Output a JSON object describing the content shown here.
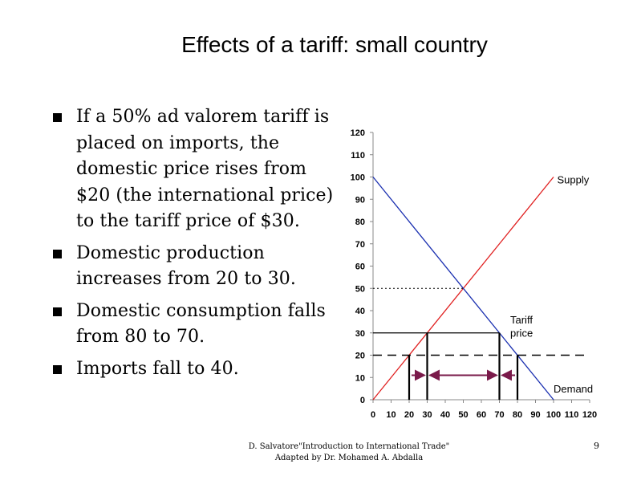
{
  "title": "Effects of a tariff: small country",
  "bullets": [
    "If a 50% ad valorem tariff is placed on imports, the domestic price rises from $20 (the international price) to the tariff price of $30.",
    "Domestic production increases from 20 to 30.",
    "Domestic consumption falls from 80 to 70.",
    "Imports fall to 40."
  ],
  "footer": {
    "line1": "D. Salvatore\"Introduction to International Trade\"",
    "line2": "Adapted by Dr. Mohamed A. Abdalla"
  },
  "page_number": "9",
  "chart_data": {
    "type": "line",
    "xlim": [
      0,
      120
    ],
    "ylim": [
      0,
      120
    ],
    "x_ticks": [
      0,
      10,
      20,
      30,
      40,
      50,
      60,
      70,
      80,
      90,
      100,
      110,
      120
    ],
    "y_ticks": [
      0,
      10,
      20,
      30,
      40,
      50,
      60,
      70,
      80,
      90,
      100,
      110,
      120
    ],
    "series": [
      {
        "name": "Supply",
        "color": "#e02020",
        "points": [
          [
            0,
            0
          ],
          [
            100,
            100
          ]
        ]
      },
      {
        "name": "Demand",
        "color": "#1a2fb0",
        "points": [
          [
            0,
            100
          ],
          [
            100,
            0
          ]
        ]
      }
    ],
    "equilibrium": {
      "quantity": 50,
      "price": 50
    },
    "world_price": 20,
    "tariff_price": 30,
    "annotations": {
      "supply": "Supply",
      "demand": "Demand",
      "tariff_line1": "Tariff",
      "tariff_line2": "price"
    },
    "quantities": {
      "production_free_trade": 20,
      "production_with_tariff": 30,
      "consumption_with_tariff": 70,
      "consumption_free_trade": 80
    },
    "arrow_color": "#7a1a4a"
  }
}
